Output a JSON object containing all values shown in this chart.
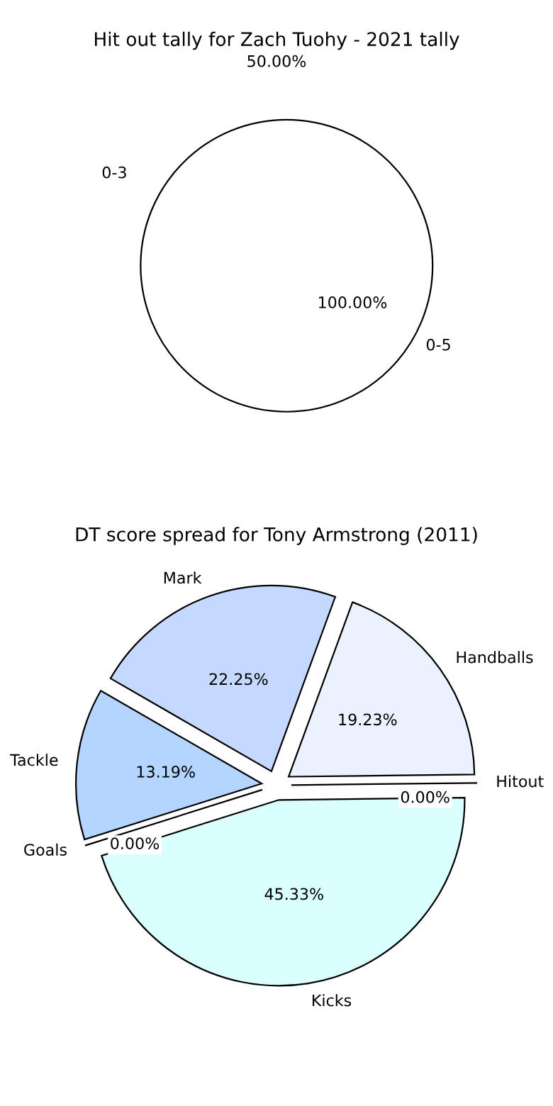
{
  "chart_data": [
    {
      "type": "pie",
      "title": "Hit out tally for Zach Tuohy - 2021 tally",
      "categories": [
        "0-3",
        "0-5"
      ],
      "values": [
        0,
        100
      ],
      "colors": [
        "#ffffff",
        "#ffffff"
      ],
      "value_labels": [
        null,
        "100.00%"
      ],
      "annotations": [
        "50.00%"
      ]
    },
    {
      "type": "pie",
      "title": "DT score spread for Tony Armstrong (2011)",
      "categories": [
        "Mark",
        "Handballs",
        "Hitout",
        "Kicks",
        "Goals",
        "Tackle"
      ],
      "values": [
        22.25,
        19.23,
        0.0,
        45.33,
        0.0,
        13.19
      ],
      "colors": [
        "#c5d9ff",
        "#eaf1ff",
        "#f0f0f0",
        "#d9ffff",
        "#e6e6e6",
        "#b3d5ff"
      ],
      "value_labels": [
        "22.25%",
        "19.23%",
        "0.00%",
        "45.33%",
        "0.00%",
        "13.19%"
      ]
    }
  ]
}
